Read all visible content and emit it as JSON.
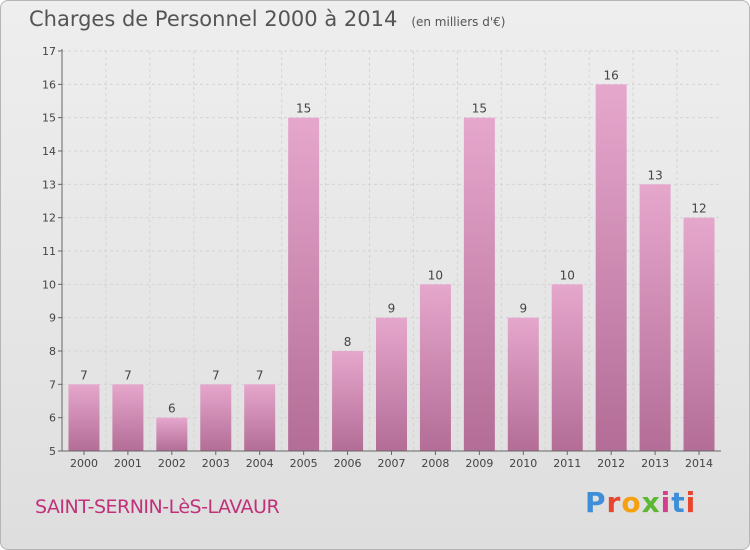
{
  "header": {
    "title": "Charges de Personnel 2000 à 2014",
    "subtitle": "(en milliers d'€)"
  },
  "footer": {
    "location": "SAINT-SERNIN-LèS-LAVAUR",
    "brand": [
      "P",
      "r",
      "o",
      "x",
      "i",
      "t",
      "i"
    ],
    "brand_colors": [
      "#3f8fd8",
      "#e8462d",
      "#f5a10f",
      "#5cb833",
      "#d23f8a",
      "#3f8fd8",
      "#e8462d"
    ]
  },
  "colors": {
    "bar_top": "#e6a7cd",
    "bar_bottom": "#b36d96",
    "axis": "#666666",
    "grid": "#d4d4d4"
  },
  "chart_data": {
    "type": "bar",
    "title": "Charges de Personnel 2000 à 2014",
    "subtitle": "(en milliers d'€)",
    "categories": [
      "2000",
      "2001",
      "2002",
      "2003",
      "2004",
      "2005",
      "2006",
      "2007",
      "2008",
      "2009",
      "2010",
      "2011",
      "2012",
      "2013",
      "2014"
    ],
    "values": [
      7,
      7,
      6,
      7,
      7,
      15,
      8,
      9,
      10,
      15,
      9,
      10,
      16,
      13,
      12
    ],
    "ylim": [
      5,
      17
    ],
    "yticks": [
      5,
      6,
      7,
      8,
      9,
      10,
      11,
      12,
      13,
      14,
      15,
      16,
      17
    ],
    "grid": true,
    "legend": "none"
  }
}
